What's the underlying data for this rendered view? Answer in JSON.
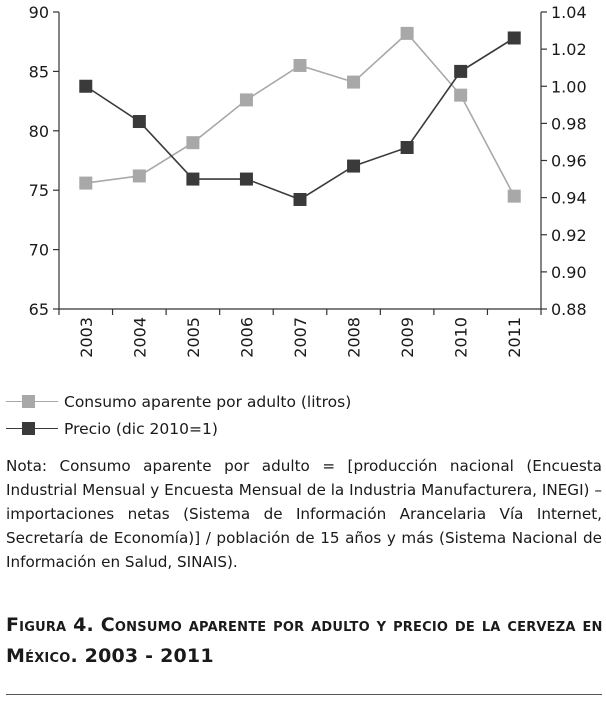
{
  "chart_data": {
    "type": "line",
    "categories": [
      "2003",
      "2004",
      "2005",
      "2006",
      "2007",
      "2008",
      "2009",
      "2010",
      "2011"
    ],
    "y_left": {
      "ylim": [
        65,
        90
      ],
      "ticks": [
        "90",
        "85",
        "80",
        "75",
        "70",
        "65"
      ],
      "tick_values": [
        90,
        85,
        80,
        75,
        70,
        65
      ]
    },
    "y_right": {
      "ylim": [
        0.88,
        1.04
      ],
      "ticks": [
        "1.04",
        "1.02",
        "1.00",
        "0.98",
        "0.96",
        "0.94",
        "0.92",
        "0.90",
        "0.88"
      ],
      "tick_values": [
        1.04,
        1.02,
        1.0,
        0.98,
        0.96,
        0.94,
        0.92,
        0.9,
        0.88
      ]
    },
    "series": [
      {
        "name": "Consumo aparente por adulto (litros)",
        "axis": "left",
        "color": "#a8a8a8",
        "values": [
          75.6,
          76.2,
          79.0,
          82.6,
          85.5,
          84.1,
          88.2,
          83.0,
          74.5
        ]
      },
      {
        "name": "Precio (dic 2010=1)",
        "axis": "right",
        "color": "#3a3a3a",
        "values": [
          1.0,
          0.981,
          0.95,
          0.95,
          0.939,
          0.957,
          0.967,
          1.008,
          1.026
        ]
      }
    ],
    "grid": false,
    "legend_position": "bottom-left"
  },
  "legend": {
    "items": [
      {
        "label": "Consumo aparente por adulto (litros)",
        "color": "#a8a8a8"
      },
      {
        "label": "Precio (dic 2010=1)",
        "color": "#3a3a3a"
      }
    ]
  },
  "note": "Nota: Consumo aparente por adulto = [producción nacional (Encuesta Industrial Mensual y Encuesta Mensual de la Industria Manufacturera, INEGI) – importaciones netas (Sistema de Información Arancelaria Vía Internet, Secretaría de Economía)] / población de 15 años y más (Sistema Nacional de Información en Salud, SINAIS).",
  "figure_title": "Figura 4. Consumo aparente por adulto y precio de la cerveza en México. 2003 - 2011"
}
